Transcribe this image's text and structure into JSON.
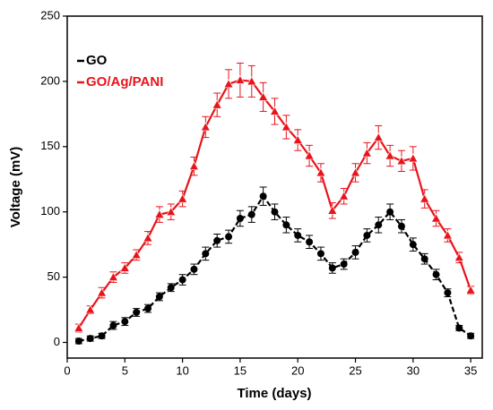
{
  "chart_data": {
    "type": "line",
    "xlabel": "Time (days)",
    "ylabel": "Voltage (mV)",
    "x": [
      1,
      2,
      3,
      4,
      5,
      6,
      7,
      8,
      9,
      10,
      11,
      12,
      13,
      14,
      15,
      16,
      17,
      18,
      19,
      20,
      21,
      22,
      23,
      24,
      25,
      26,
      27,
      28,
      29,
      30,
      31,
      32,
      33,
      34,
      35
    ],
    "series": [
      {
        "name": "GO",
        "color": "#000000",
        "marker": "circle",
        "values": [
          1,
          3,
          5,
          13,
          16,
          23,
          26,
          35,
          42,
          48,
          56,
          68,
          78,
          81,
          95,
          98,
          112,
          100,
          90,
          82,
          77,
          68,
          57,
          60,
          69,
          82,
          90,
          100,
          89,
          75,
          64,
          52,
          38,
          11,
          5
        ],
        "errors": [
          2,
          2,
          2,
          3,
          3,
          3,
          3,
          3,
          3,
          4,
          4,
          5,
          5,
          5,
          6,
          6,
          7,
          6,
          6,
          5,
          5,
          5,
          4,
          4,
          5,
          5,
          6,
          6,
          5,
          5,
          4,
          4,
          3,
          2,
          2
        ]
      },
      {
        "name": "GO/Ag/PANI",
        "color": "#e8141b",
        "marker": "triangle",
        "values": [
          11,
          25,
          38,
          50,
          57,
          67,
          80,
          98,
          100,
          110,
          135,
          165,
          182,
          198,
          201,
          200,
          188,
          177,
          165,
          155,
          143,
          130,
          101,
          112,
          130,
          145,
          157,
          143,
          139,
          141,
          110,
          95,
          82,
          65,
          40
        ],
        "errors": [
          3,
          3,
          4,
          4,
          4,
          4,
          5,
          6,
          6,
          6,
          7,
          8,
          9,
          11,
          13,
          12,
          11,
          10,
          9,
          8,
          8,
          7,
          6,
          6,
          7,
          8,
          9,
          8,
          8,
          9,
          7,
          6,
          5,
          4,
          3
        ]
      }
    ],
    "xlim": [
      0,
      36
    ],
    "xticks": [
      0,
      5,
      10,
      15,
      20,
      25,
      30,
      35
    ],
    "ylim": [
      -12,
      250
    ],
    "yticks": [
      0,
      50,
      100,
      150,
      200,
      250
    ],
    "legend": "upper left"
  }
}
